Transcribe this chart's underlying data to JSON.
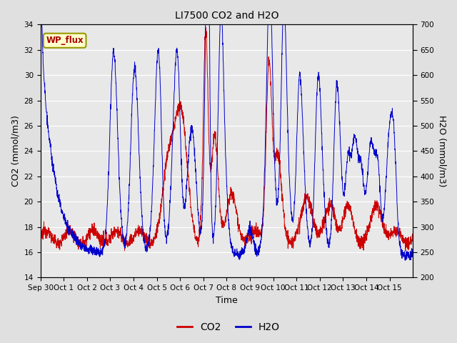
{
  "title": "LI7500 CO2 and H2O",
  "xlabel": "Time",
  "ylabel_left": "CO2 (mmol/m3)",
  "ylabel_right": "H2O (mmol/m3)",
  "co2_color": "#cc0000",
  "h2o_color": "#0000cc",
  "fig_bg_color": "#e0e0e0",
  "plot_bg_color": "#e8e8e8",
  "grid_color": "#ffffff",
  "ylim_left": [
    14,
    34
  ],
  "ylim_right": [
    200,
    700
  ],
  "yticks_left": [
    14,
    16,
    18,
    20,
    22,
    24,
    26,
    28,
    30,
    32,
    34
  ],
  "yticks_right": [
    200,
    250,
    300,
    350,
    400,
    450,
    500,
    550,
    600,
    650,
    700
  ],
  "xtick_labels": [
    "Sep 30",
    "Oct 1",
    "Oct 2",
    "Oct 3",
    "Oct 4",
    "Oct 5",
    "Oct 6",
    "Oct 7",
    "Oct 8",
    "Oct 9",
    "Oct 10",
    "Oct 11",
    "Oct 12",
    "Oct 13",
    "Oct 14",
    "Oct 15"
  ],
  "legend_label_co2": "CO2",
  "legend_label_h2o": "H2O",
  "annotation_text": "WP_flux"
}
